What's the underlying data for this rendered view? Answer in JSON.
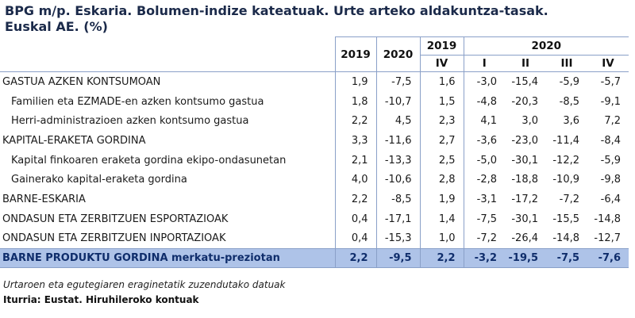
{
  "title_line1": "BPG m/p. Eskaria. Bolumen-indize kateatuak. Urte arteko aldakuntza-tasak.",
  "title_line2": "Euskal AE. (%)",
  "header": {
    "annual_2019": "2019",
    "annual_2020": "2020",
    "q_2019": "2019",
    "q_2020": "2020",
    "quarters": [
      "IV",
      "I",
      "II",
      "III",
      "IV"
    ]
  },
  "rows": [
    {
      "label": "GASTUA AZKEN KONTSUMOAN",
      "v": [
        "1,9",
        "-7,5",
        "1,6",
        "-3,0",
        "-15,4",
        "-5,9",
        "-5,7"
      ]
    },
    {
      "label": "Familien eta EZMADE-en azken kontsumo gastua",
      "v": [
        "1,8",
        "-10,7",
        "1,5",
        "-4,8",
        "-20,3",
        "-8,5",
        "-9,1"
      ]
    },
    {
      "label": "Herri-administrazioen azken kontsumo gastua",
      "v": [
        "2,2",
        "4,5",
        "2,3",
        "4,1",
        "3,0",
        "3,6",
        "7,2"
      ]
    },
    {
      "label": "KAPITAL-ERAKETA GORDINA",
      "v": [
        "3,3",
        "-11,6",
        "2,7",
        "-3,6",
        "-23,0",
        "-11,4",
        "-8,4"
      ]
    },
    {
      "label": "Kapital finkoaren eraketa gordina ekipo-ondasunetan",
      "v": [
        "2,1",
        "-13,3",
        "2,5",
        "-5,0",
        "-30,1",
        "-12,2",
        "-5,9"
      ]
    },
    {
      "label": "Gainerako kapital-eraketa gordina",
      "v": [
        "4,0",
        "-10,6",
        "2,8",
        "-2,8",
        "-18,8",
        "-10,9",
        "-9,8"
      ]
    },
    {
      "label": "BARNE-ESKARIA",
      "v": [
        "2,2",
        "-8,5",
        "1,9",
        "-3,1",
        "-17,2",
        "-7,2",
        "-6,4"
      ]
    },
    {
      "label": "ONDASUN ETA ZERBITZUEN ESPORTAZIOAK",
      "v": [
        "0,4",
        "-17,1",
        "1,4",
        "-7,5",
        "-30,1",
        "-15,5",
        "-14,8"
      ]
    },
    {
      "label": "ONDASUN ETA ZERBITZUEN INPORTAZIOAK",
      "v": [
        "0,4",
        "-15,3",
        "1,0",
        "-7,2",
        "-26,4",
        "-14,8",
        "-12,7"
      ]
    }
  ],
  "gdp": {
    "label_bold": "BARNE PRODUKTU GORDINA",
    "label_rest": " merkatu-preziotan",
    "v": [
      "2,2",
      "-9,5",
      "2,2",
      "-3,2",
      "-19,5",
      "-7,5",
      "-7,6"
    ]
  },
  "note": "Urtaroen eta egutegiaren eraginetatik zuzendutako datuak",
  "source": "Iturria: Eustat. Hiruhileroko kontuak"
}
